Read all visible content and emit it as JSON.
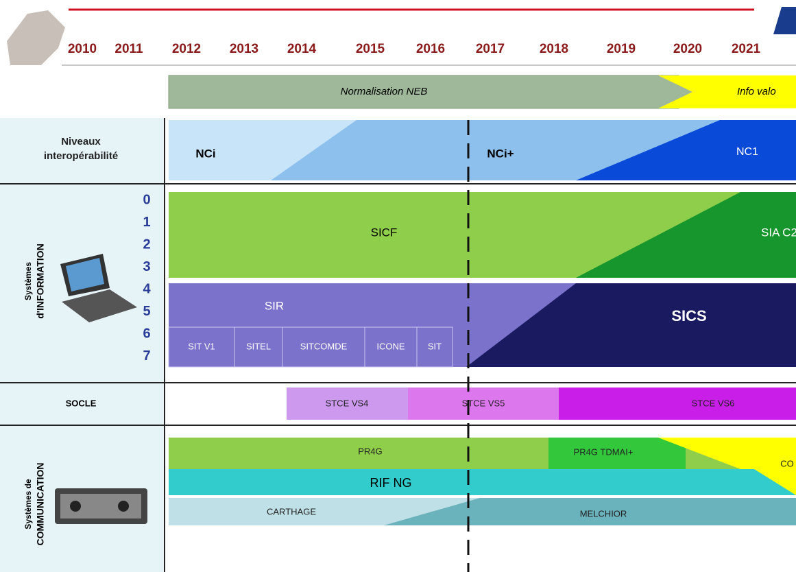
{
  "header": {
    "years": [
      "2010",
      "2011",
      "2012",
      "2013",
      "2014",
      "2015",
      "2016",
      "2017",
      "2018",
      "2019",
      "2020",
      "2021"
    ],
    "phases": [
      "Normalisation NEB",
      "Info valo"
    ]
  },
  "interop": {
    "label": [
      "Niveaux",
      "interopérabilité"
    ],
    "levels": [
      "NCi",
      "NCi+",
      "NC1"
    ]
  },
  "information": {
    "label": [
      "Systèmes",
      "d'INFORMATION"
    ],
    "layers": [
      "0",
      "1",
      "2",
      "3",
      "4",
      "5",
      "6",
      "7"
    ],
    "systems": [
      "SICF",
      "SIA C2",
      "SIR",
      "SICS"
    ],
    "sub_systems": [
      "SIT V1",
      "SITEL",
      "SITCOMDE",
      "ICONE",
      "SIT"
    ]
  },
  "socle": {
    "label": "SOCLE",
    "versions": [
      "STCE VS4",
      "STCE VS5",
      "STCE VS6"
    ]
  },
  "communication": {
    "label": [
      "Systèmes de",
      "COMMUNICATION"
    ],
    "systems": [
      "PR4G",
      "PR4G TDMAI+",
      "CO",
      "RIF NG",
      "CARTHAGE",
      "MELCHIOR"
    ]
  }
}
